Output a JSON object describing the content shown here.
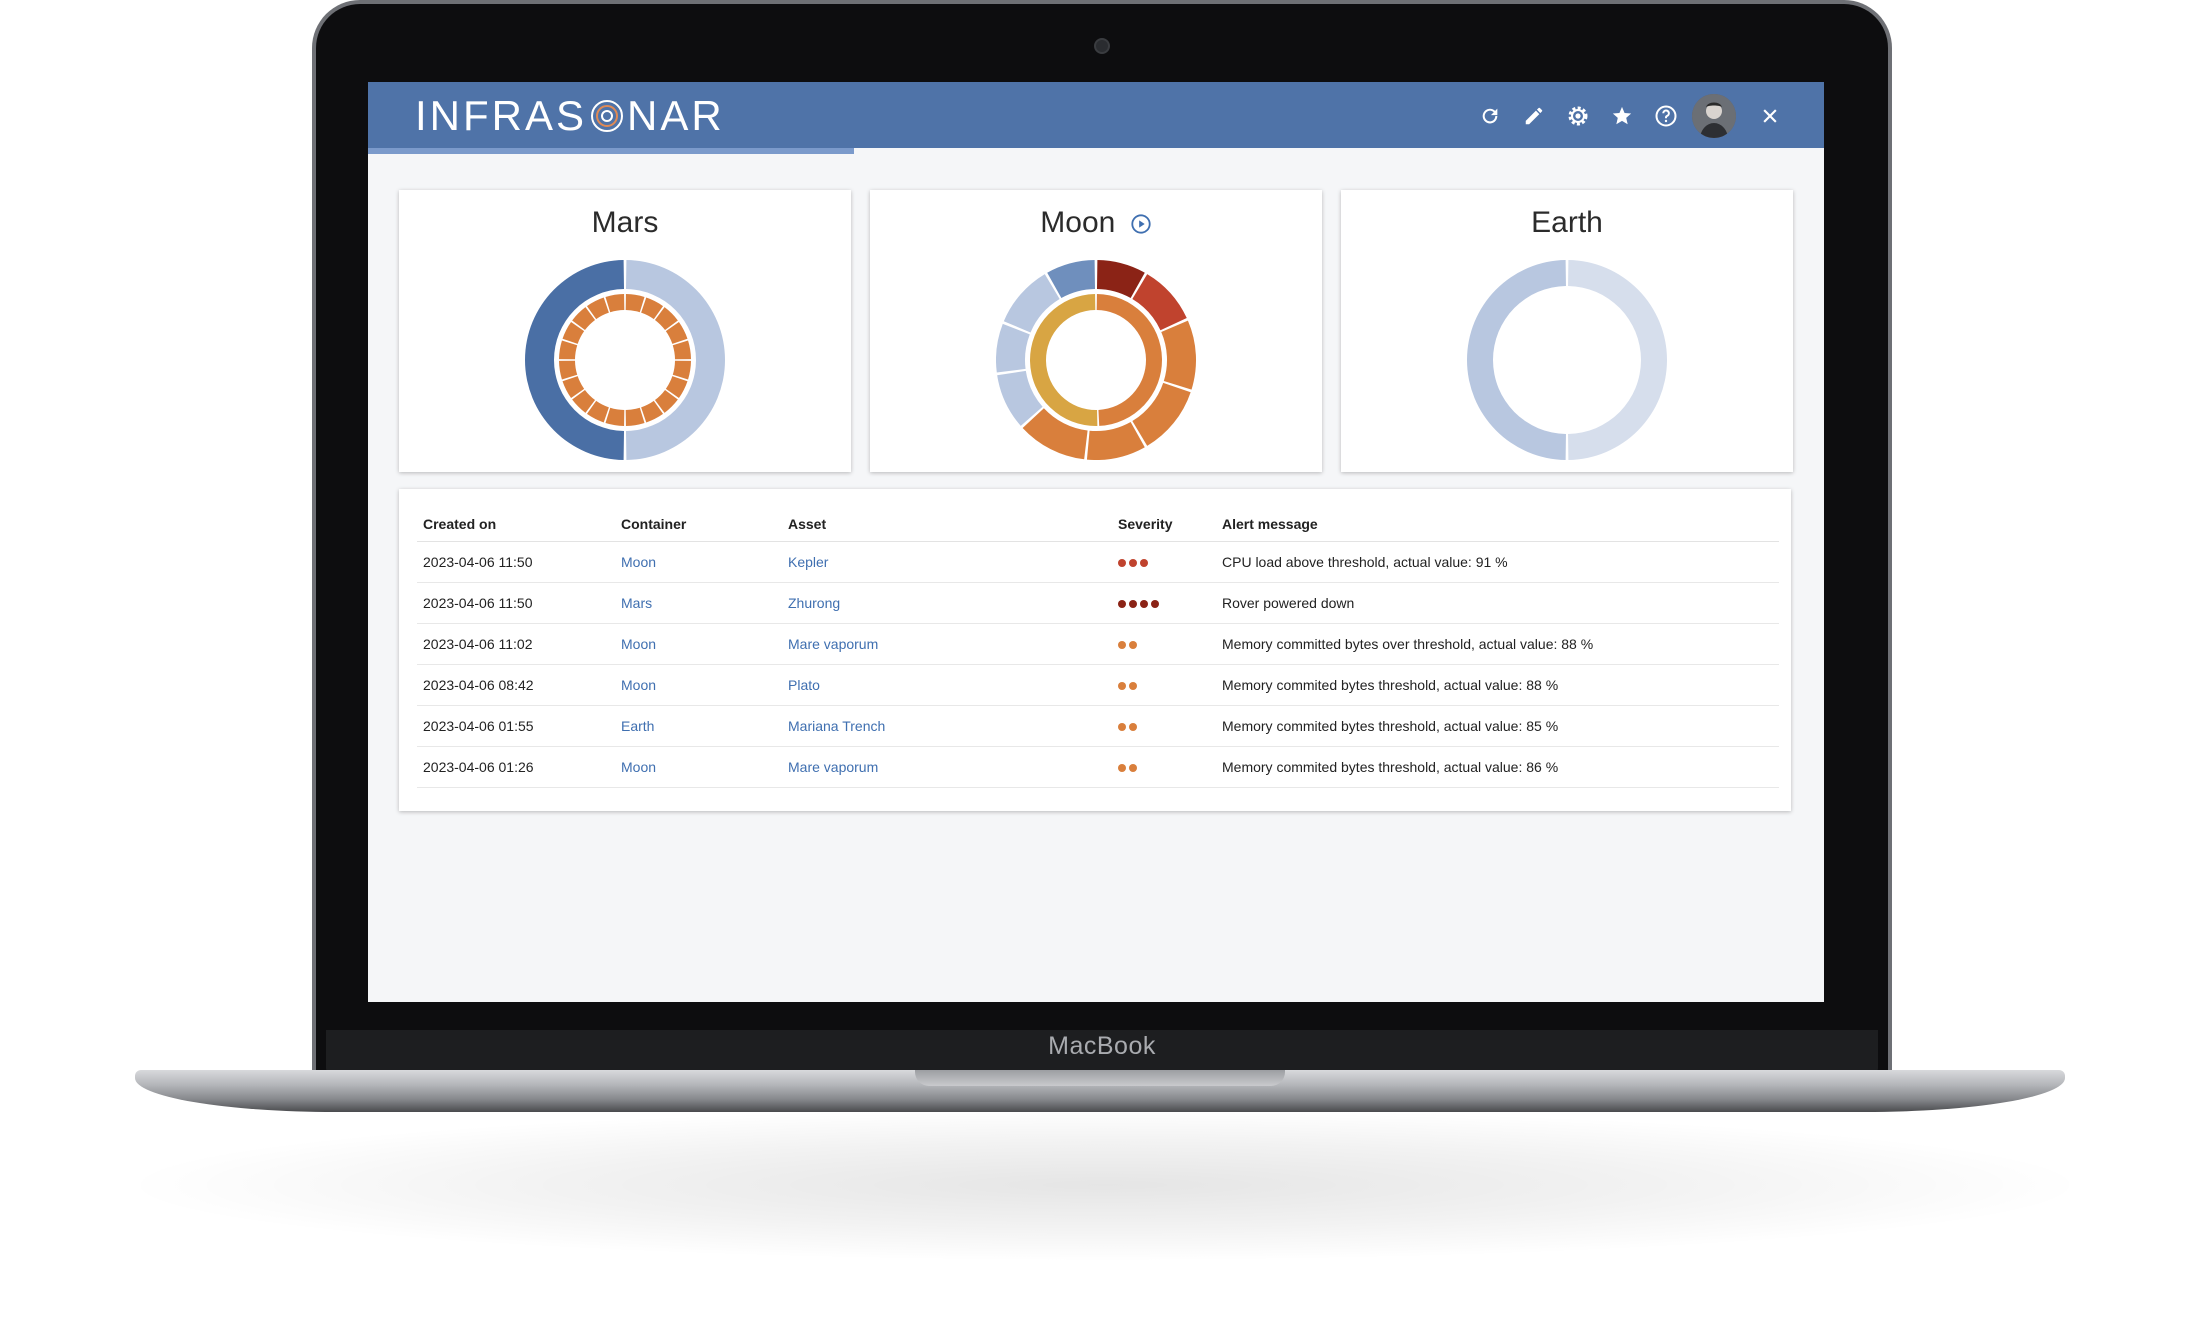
{
  "device": {
    "brand": "MacBook"
  },
  "app": {
    "logo_text_left": "INFRAS",
    "logo_text_right": "NAR"
  },
  "toolbar": {
    "icons": [
      "refresh-icon",
      "edit-icon",
      "settings-icon",
      "star-icon",
      "help-icon",
      "avatar",
      "close-icon"
    ]
  },
  "colors": {
    "header": "#4f73a8",
    "blue_dark": "#4a6fa5",
    "blue_light": "#b8c7e0",
    "blue_pale": "#d6deec",
    "orange": "#d97f3c",
    "red": "#c0432e",
    "dark_red": "#8b2316",
    "yellow": "#d8a543",
    "link": "#3f6fb0"
  },
  "cards": [
    {
      "title": "Mars",
      "show_play": false
    },
    {
      "title": "Moon",
      "show_play": true
    },
    {
      "title": "Earth",
      "show_play": false
    }
  ],
  "table": {
    "headers": [
      "Created on",
      "Container",
      "Asset",
      "Severity",
      "Alert message"
    ],
    "rows": [
      {
        "created": "2023-04-06 11:50",
        "container": "Moon",
        "asset": "Kepler",
        "severity": 3,
        "severity_color": "#c0432e",
        "message": "CPU load above threshold, actual value: 91 %"
      },
      {
        "created": "2023-04-06 11:50",
        "container": "Mars",
        "asset": "Zhurong",
        "severity": 4,
        "severity_color": "#8b2316",
        "message": "Rover powered down"
      },
      {
        "created": "2023-04-06 11:02",
        "container": "Moon",
        "asset": "Mare vaporum",
        "severity": 2,
        "severity_color": "#d97f3c",
        "message": "Memory committed bytes over threshold, actual value:  88 %"
      },
      {
        "created": "2023-04-06 08:42",
        "container": "Moon",
        "asset": "Plato",
        "severity": 2,
        "severity_color": "#d97f3c",
        "message": "Memory commited bytes threshold, actual value: 88 %"
      },
      {
        "created": "2023-04-06 01:55",
        "container": "Earth",
        "asset": "Mariana Trench",
        "severity": 2,
        "severity_color": "#d97f3c",
        "message": "Memory commited bytes threshold, actual value: 85 %"
      },
      {
        "created": "2023-04-06 01:26",
        "container": "Moon",
        "asset": "Mare vaporum",
        "severity": 2,
        "severity_color": "#d97f3c",
        "message": "Memory commited bytes threshold, actual value: 86 %"
      }
    ]
  }
}
